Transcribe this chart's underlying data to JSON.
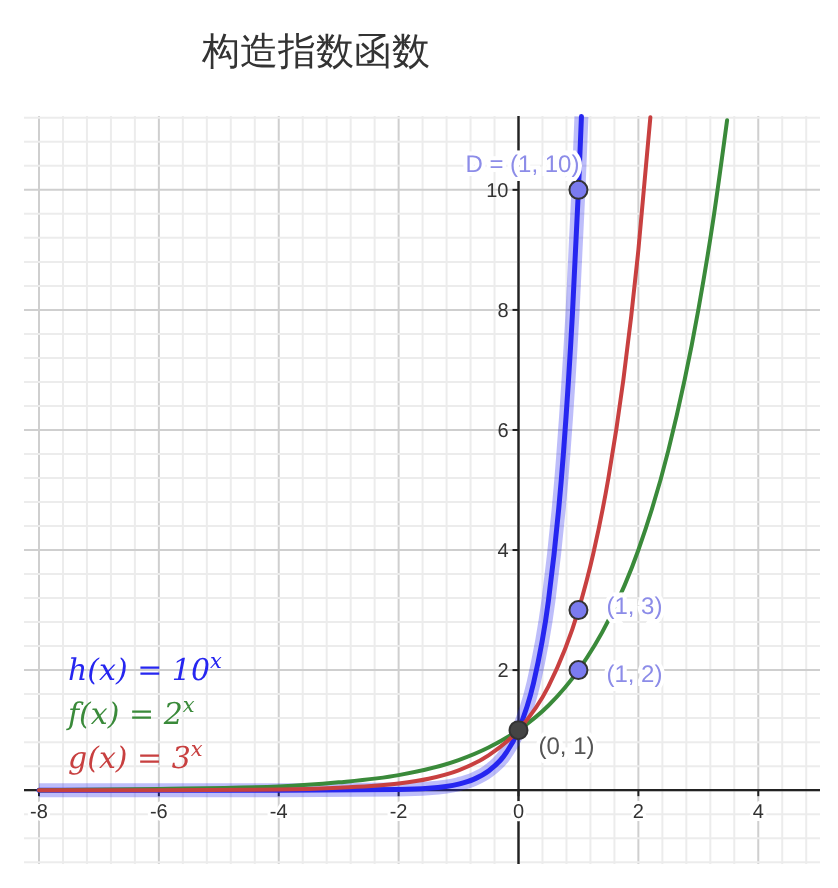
{
  "chart_data": {
    "type": "line",
    "title": "构造指数函数",
    "xlim": [
      -8.25,
      5.03
    ],
    "ylim": [
      -1.23,
      11.23
    ],
    "xticks": [
      -8,
      -6,
      -4,
      -2,
      0,
      2,
      4
    ],
    "yticks": [
      2,
      4,
      6,
      8,
      10
    ],
    "grid": true,
    "legend": "bottom left",
    "marker": "none",
    "line_style": "solid",
    "series": [
      {
        "name": "h(x) = 10$^{x}$",
        "color": "#2626f0",
        "x": [
          -8,
          -4,
          -2,
          -1.5,
          -1,
          -0.75,
          -0.5,
          -0.25,
          0,
          0.25,
          0.5,
          0.75,
          0.9,
          1,
          1.05
        ],
        "values": [
          0,
          0,
          0.01,
          0.03,
          0.1,
          0.18,
          0.32,
          0.56,
          1,
          1.78,
          3.16,
          5.62,
          7.94,
          10,
          11.22
        ]
      },
      {
        "name": "f(x) = 2$^{x}$",
        "color": "#3a8a3a",
        "x": [
          -8,
          -6,
          -4,
          -3,
          -2,
          -1,
          -0.5,
          0,
          0.5,
          1,
          1.5,
          2,
          2.5,
          3,
          3.25,
          3.48
        ],
        "values": [
          0,
          0.02,
          0.06,
          0.13,
          0.25,
          0.5,
          0.71,
          1,
          1.41,
          2,
          2.83,
          4,
          5.66,
          8,
          9.51,
          11.16
        ]
      },
      {
        "name": "g(x) = 3$^{x}$",
        "color": "#c84040",
        "x": [
          -8,
          -6,
          -4,
          -3,
          -2,
          -1.5,
          -1,
          -0.5,
          0,
          0.5,
          1,
          1.25,
          1.5,
          1.75,
          2,
          2.2
        ],
        "values": [
          0,
          0,
          0.01,
          0.04,
          0.11,
          0.19,
          0.33,
          0.58,
          1,
          1.73,
          3,
          3.95,
          5.2,
          6.84,
          9,
          11.21
        ]
      },
      {
        "type": "scatter",
        "marker": "circle",
        "x": [
          1,
          1,
          1,
          0
        ],
        "values": [
          10,
          3,
          2,
          1
        ],
        "colors": [
          "#7b7bef",
          "#7b7bef",
          "#7b7bef",
          "#444444"
        ],
        "value_labels": [
          "D = (1, 10)",
          "(1, 3)",
          "(1, 2)",
          "(0, 1)"
        ]
      }
    ]
  }
}
